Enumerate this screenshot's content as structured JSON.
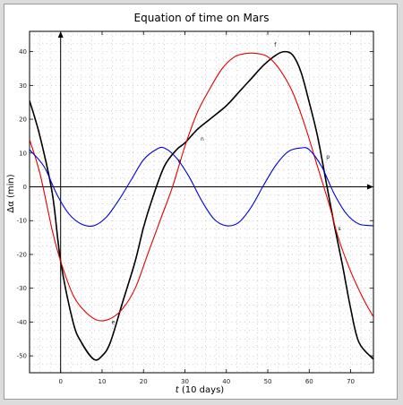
{
  "chart_data": {
    "type": "line",
    "title": "Equation of time on Mars",
    "xlabel": "t (10 days)",
    "ylabel": "Δα (min)",
    "xlim": [
      -7.5,
      75.5
    ],
    "ylim": [
      -55,
      46
    ],
    "x_ticks": [
      0,
      10,
      20,
      30,
      40,
      50,
      60,
      70
    ],
    "y_ticks": [
      -50,
      -40,
      -30,
      -20,
      -10,
      0,
      10,
      20,
      30,
      40
    ],
    "grid": "dotted",
    "series": [
      {
        "color": "#000000",
        "x": [
          -7.5,
          -5,
          -2,
          0,
          3,
          5,
          8,
          10,
          12,
          15,
          18,
          20,
          22,
          25,
          28,
          30,
          33,
          36,
          40,
          43,
          46,
          49,
          52,
          54,
          56,
          58,
          60,
          62,
          64,
          66,
          68,
          70,
          72,
          75.5
        ],
        "y": [
          25.5,
          15,
          -2,
          -22,
          -40,
          -46,
          -51,
          -50,
          -46,
          -34,
          -22,
          -12,
          -4,
          6,
          11,
          13,
          17,
          20,
          24,
          28,
          32,
          36,
          39,
          40,
          39,
          34,
          25,
          15,
          2,
          -11,
          -23,
          -36,
          -46,
          -51
        ]
      },
      {
        "color": "#e00000",
        "x": [
          -7.5,
          -5,
          -2,
          0,
          3,
          6,
          9,
          12,
          15,
          18,
          21,
          24,
          27,
          30,
          33,
          36,
          39,
          42,
          45,
          47,
          50,
          53,
          56,
          59,
          62,
          65,
          67,
          70,
          73,
          75.5
        ],
        "y": [
          14,
          4,
          -13,
          -22,
          -32,
          -37,
          -39.5,
          -39,
          -36,
          -30,
          -20,
          -10,
          0,
          12,
          22,
          29,
          35,
          38.5,
          39.5,
          39.5,
          38.5,
          34.5,
          28,
          18,
          6,
          -6,
          -15,
          -25,
          -33,
          -38.5
        ]
      },
      {
        "color": "#0000dd",
        "x": [
          -7.5,
          -4,
          -1,
          2,
          5,
          8,
          11,
          14,
          17,
          20,
          23,
          25,
          28,
          31,
          34,
          37,
          40,
          43,
          46,
          49,
          52,
          55,
          58,
          60,
          63,
          66,
          69,
          72,
          75.5
        ],
        "y": [
          11,
          6,
          -2,
          -8,
          -11,
          -11.5,
          -9,
          -4,
          2,
          8,
          11,
          11.5,
          8.5,
          3,
          -4,
          -9.5,
          -11.5,
          -10.5,
          -6,
          0.5,
          6.5,
          10.5,
          11.5,
          11,
          6,
          -2,
          -8,
          -11,
          -11.5
        ]
      }
    ],
    "annotations": [
      {
        "text": "f",
        "x": 51.8,
        "y": 41.5
      },
      {
        "text": "n",
        "x": 34.2,
        "y": 13.7
      },
      {
        "text": "p",
        "x": 64.5,
        "y": 8.3
      },
      {
        "text": "a",
        "x": 28.7,
        "y": 7.2
      },
      {
        "text": "-",
        "x": 15.6,
        "y": -4.1
      },
      {
        "text": "s",
        "x": 67.3,
        "y": -12.8
      },
      {
        "text": "e",
        "x": 12.7,
        "y": -40.5
      }
    ]
  }
}
